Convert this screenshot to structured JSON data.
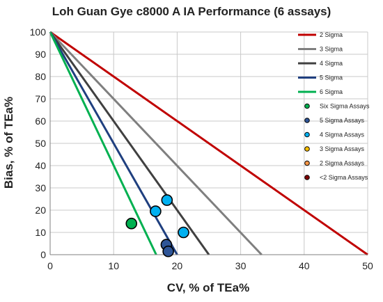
{
  "chart_data": {
    "type": "scatter",
    "title": "Loh Guan Gye c8000 A IA Performance (6 assays)",
    "xlabel": "CV, % of TEa%",
    "ylabel": "Bias, % of TEa%",
    "xlim": [
      0,
      50
    ],
    "ylim": [
      0,
      100
    ],
    "xticks": [
      "0",
      "10",
      "20",
      "30",
      "40",
      "50"
    ],
    "yticks": [
      "0",
      "10",
      "20",
      "30",
      "40",
      "50",
      "60",
      "70",
      "80",
      "90",
      "100"
    ],
    "grid": true,
    "legend_position": "right",
    "lines": [
      {
        "name": "2 Sigma",
        "color": "#c00000",
        "x": [
          0,
          50
        ],
        "y": [
          100,
          0
        ]
      },
      {
        "name": "3 Sigma",
        "color": "#7f7f7f",
        "x": [
          0,
          33.3
        ],
        "y": [
          100,
          0
        ]
      },
      {
        "name": "4 Sigma",
        "color": "#404040",
        "x": [
          0,
          25
        ],
        "y": [
          100,
          0
        ]
      },
      {
        "name": "5 Sigma",
        "color": "#1f3f7f",
        "x": [
          0,
          20
        ],
        "y": [
          100,
          0
        ]
      },
      {
        "name": "6 Sigma",
        "color": "#00b050",
        "x": [
          0,
          16.7
        ],
        "y": [
          100,
          0
        ]
      }
    ],
    "series": [
      {
        "name": "Six Sigma Assays",
        "color": "#00b050",
        "points": [
          [
            12.8,
            14
          ]
        ]
      },
      {
        "name": "5 Sigma Assays",
        "color": "#2e5597",
        "points": [
          [
            18.3,
            4.5
          ],
          [
            18.6,
            1.5
          ]
        ]
      },
      {
        "name": "4 Sigma Assays",
        "color": "#00b0f0",
        "points": [
          [
            16.6,
            19.5
          ],
          [
            18.4,
            24.5
          ],
          [
            21.0,
            10.0
          ]
        ]
      },
      {
        "name": "3 Sigma Assays",
        "color": "#ffc000",
        "points": []
      },
      {
        "name": "2 Sigma Assays",
        "color": "#f79646",
        "points": []
      },
      {
        "name": "<2 Sigma Assays",
        "color": "#7f0000",
        "points": []
      }
    ]
  }
}
